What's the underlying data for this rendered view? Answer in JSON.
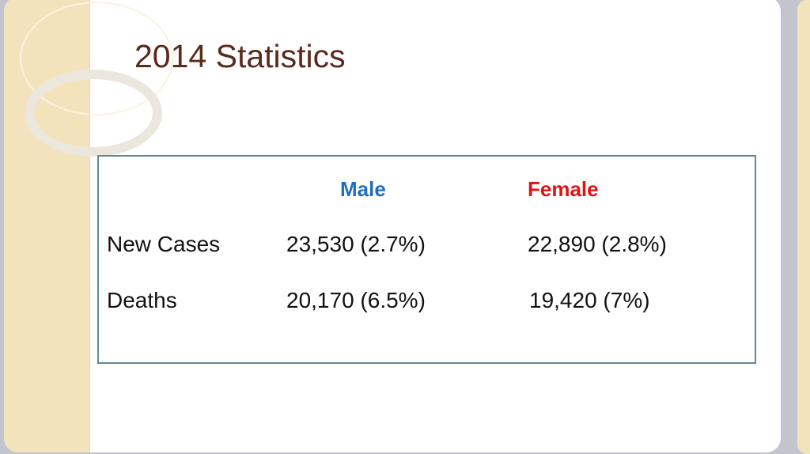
{
  "title": "2014 Statistics",
  "table": {
    "headers": [
      "Male",
      "Female"
    ],
    "rows": [
      {
        "label": "New Cases",
        "male": "23,530 (2.7%)",
        "female": "22,890 (2.8%)"
      },
      {
        "label": "Deaths",
        "male": "20,170 (6.5%)",
        "female": "19,420 (7%)"
      }
    ]
  },
  "colors": {
    "title": "#5b2a1c",
    "male": "#1f6fc0",
    "female": "#e01414",
    "border": "#5e8b95"
  }
}
